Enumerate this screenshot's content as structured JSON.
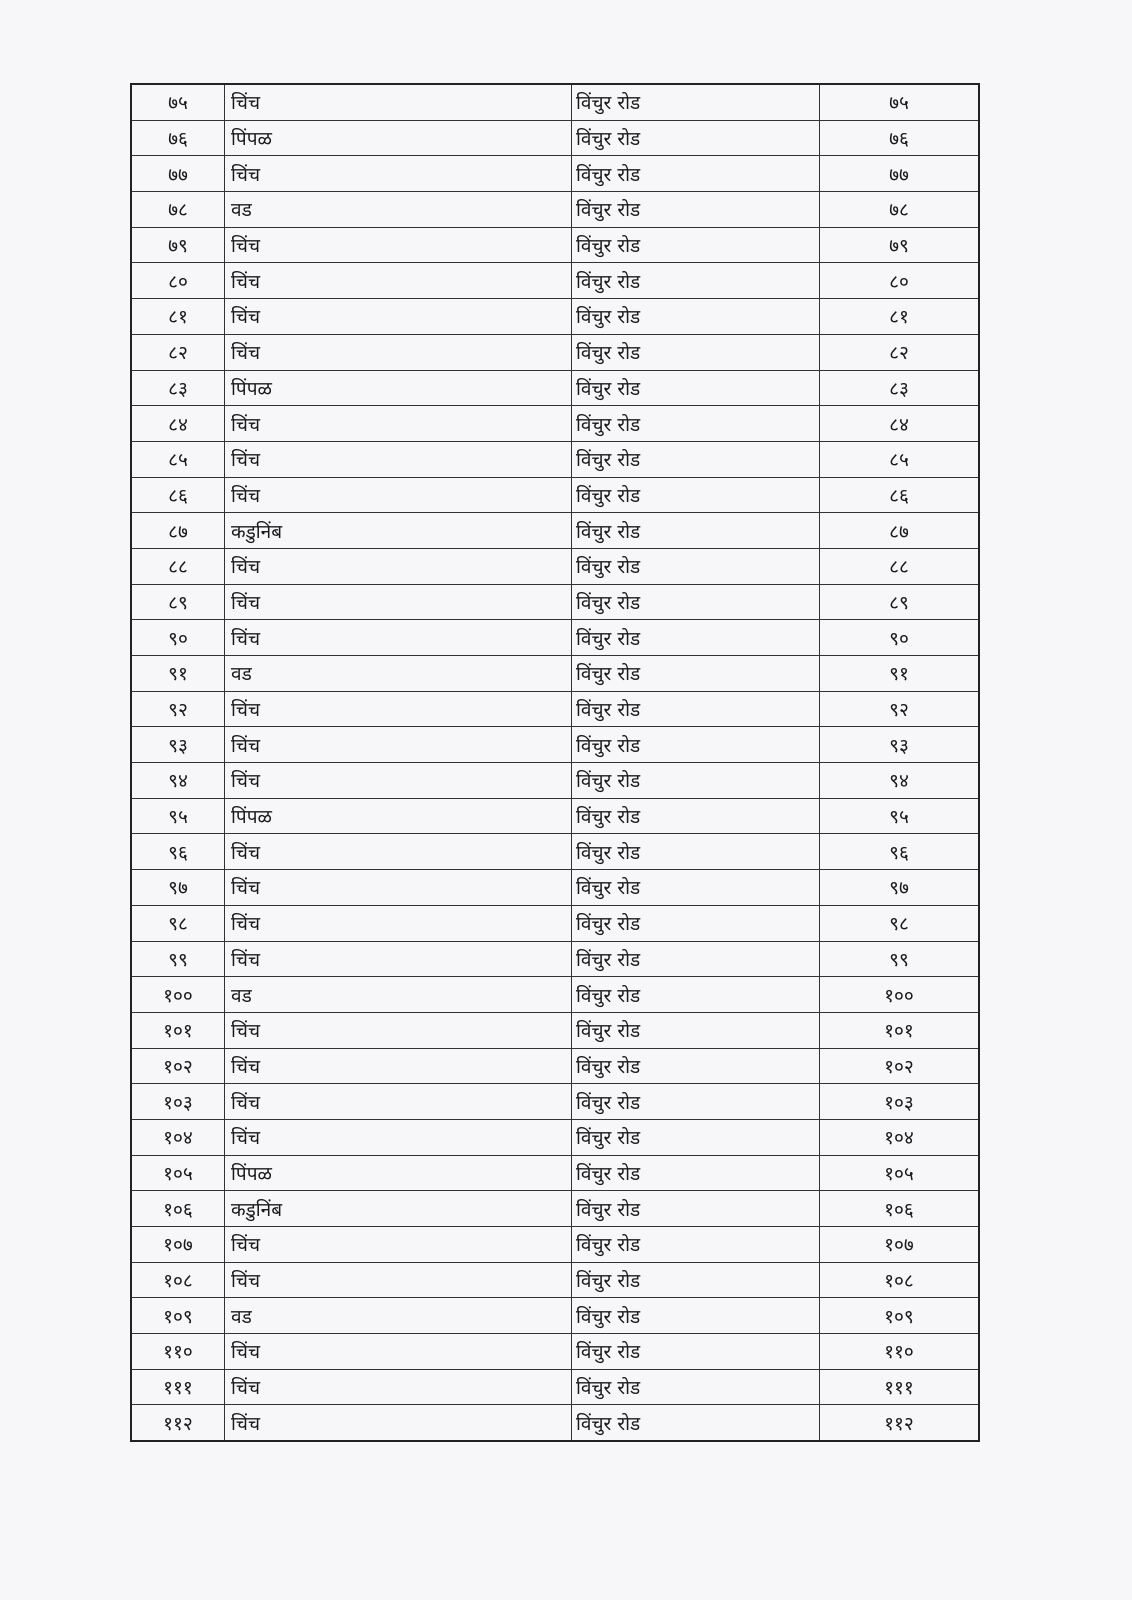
{
  "table": {
    "rows": [
      [
        "७५",
        "चिंच",
        "विंचुर रोड",
        "७५"
      ],
      [
        "७६",
        "पिंपळ",
        "विंचुर रोड",
        "७६"
      ],
      [
        "७७",
        "चिंच",
        "विंचुर रोड",
        "७७"
      ],
      [
        "७८",
        "वड",
        "विंचुर रोड",
        "७८"
      ],
      [
        "७९",
        "चिंच",
        "विंचुर रोड",
        "७९"
      ],
      [
        "८०",
        "चिंच",
        "विंचुर रोड",
        "८०"
      ],
      [
        "८१",
        "चिंच",
        "विंचुर रोड",
        "८१"
      ],
      [
        "८२",
        "चिंच",
        "विंचुर रोड",
        "८२"
      ],
      [
        "८३",
        "पिंपळ",
        "विंचुर रोड",
        "८३"
      ],
      [
        "८४",
        "चिंच",
        "विंचुर रोड",
        "८४"
      ],
      [
        "८५",
        "चिंच",
        "विंचुर रोड",
        "८५"
      ],
      [
        "८६",
        "चिंच",
        "विंचुर रोड",
        "८६"
      ],
      [
        "८७",
        "कडुनिंब",
        "विंचुर रोड",
        "८७"
      ],
      [
        "८८",
        "चिंच",
        "विंचुर रोड",
        "८८"
      ],
      [
        "८९",
        "चिंच",
        "विंचुर रोड",
        "८९"
      ],
      [
        "९०",
        "चिंच",
        "विंचुर रोड",
        "९०"
      ],
      [
        "९१",
        "वड",
        "विंचुर रोड",
        "९१"
      ],
      [
        "९२",
        "चिंच",
        "विंचुर रोड",
        "९२"
      ],
      [
        "९३",
        "चिंच",
        "विंचुर रोड",
        "९३"
      ],
      [
        "९४",
        "चिंच",
        "विंचुर रोड",
        "९४"
      ],
      [
        "९५",
        "पिंपळ",
        "विंचुर रोड",
        "९५"
      ],
      [
        "९६",
        "चिंच",
        "विंचुर रोड",
        "९६"
      ],
      [
        "९७",
        "चिंच",
        "विंचुर रोड",
        "९७"
      ],
      [
        "९८",
        "चिंच",
        "विंचुर रोड",
        "९८"
      ],
      [
        "९९",
        "चिंच",
        "विंचुर रोड",
        "९९"
      ],
      [
        "१००",
        "वड",
        "विंचुर रोड",
        "१००"
      ],
      [
        "१०१",
        "चिंच",
        "विंचुर रोड",
        "१०१"
      ],
      [
        "१०२",
        "चिंच",
        "विंचुर रोड",
        "१०२"
      ],
      [
        "१०३",
        "चिंच",
        "विंचुर रोड",
        "१०३"
      ],
      [
        "१०४",
        "चिंच",
        "विंचुर रोड",
        "१०४"
      ],
      [
        "१०५",
        "पिंपळ",
        "विंचुर रोड",
        "१०५"
      ],
      [
        "१०६",
        "कडुनिंब",
        "विंचुर रोड",
        "१०६"
      ],
      [
        "१०७",
        "चिंच",
        "विंचुर रोड",
        "१०७"
      ],
      [
        "१०८",
        "चिंच",
        "विंचुर रोड",
        "१०८"
      ],
      [
        "१०९",
        "वड",
        "विंचुर रोड",
        "१०९"
      ],
      [
        "११०",
        "चिंच",
        "विंचुर रोड",
        "११०"
      ],
      [
        "१११",
        "चिंच",
        "विंचुर रोड",
        "१११"
      ],
      [
        "११२",
        "चिंच",
        "विंचुर रोड",
        "११२"
      ]
    ]
  }
}
